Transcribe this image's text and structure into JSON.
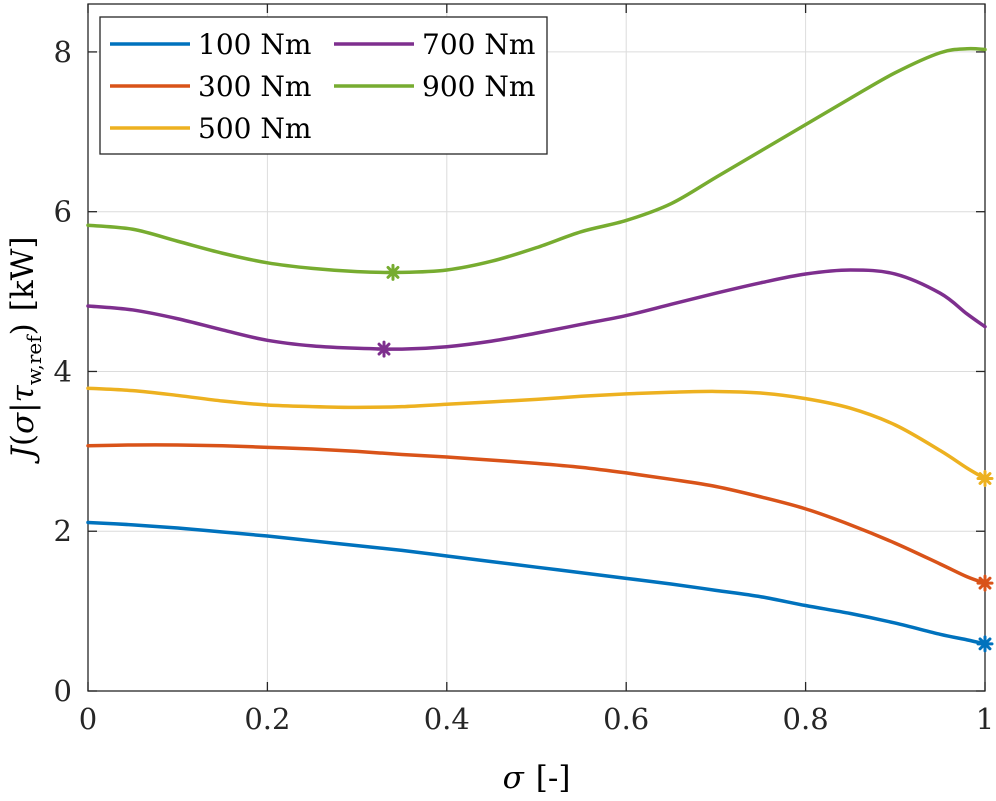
{
  "chart_data": {
    "type": "line",
    "title": "",
    "xlabel": "σ [-]",
    "ylabel": "J(σ|τ_w,ref) [kW]",
    "ylabel_parts": {
      "func": "J",
      "open": "(",
      "var": "σ",
      "bar": "|",
      "tau": "τ",
      "sub": "w,ref",
      "close": ")",
      "unit": "[kW]"
    },
    "xlabel_parts": {
      "var": "σ",
      "unit": "[-]"
    },
    "xlim": [
      0,
      1
    ],
    "ylim": [
      0,
      8.6
    ],
    "xticks": [
      0,
      0.2,
      0.4,
      0.6,
      0.8,
      1
    ],
    "xtick_labels": [
      "0",
      "0.2",
      "0.4",
      "0.6",
      "0.8",
      "1"
    ],
    "yticks": [
      0,
      2,
      4,
      6,
      8
    ],
    "ytick_labels": [
      "0",
      "2",
      "4",
      "6",
      "8"
    ],
    "grid": true,
    "legend_position": "top-left",
    "x": [
      0,
      0.05,
      0.1,
      0.15,
      0.2,
      0.25,
      0.3,
      0.35,
      0.4,
      0.45,
      0.5,
      0.55,
      0.6,
      0.65,
      0.7,
      0.75,
      0.8,
      0.85,
      0.9,
      0.95,
      0.98,
      1.0
    ],
    "series": [
      {
        "name": "100 Nm",
        "color": "#0072BD",
        "values": [
          2.11,
          2.08,
          2.04,
          1.99,
          1.94,
          1.88,
          1.82,
          1.76,
          1.69,
          1.62,
          1.55,
          1.48,
          1.41,
          1.34,
          1.26,
          1.18,
          1.07,
          0.97,
          0.85,
          0.71,
          0.64,
          0.59
        ],
        "marker": {
          "x": 1.0,
          "y": 0.59
        }
      },
      {
        "name": "300 Nm",
        "color": "#D95319",
        "values": [
          3.07,
          3.08,
          3.08,
          3.07,
          3.05,
          3.03,
          3.0,
          2.96,
          2.93,
          2.89,
          2.85,
          2.8,
          2.73,
          2.65,
          2.56,
          2.43,
          2.28,
          2.08,
          1.85,
          1.59,
          1.43,
          1.35
        ],
        "marker": {
          "x": 1.0,
          "y": 1.35
        }
      },
      {
        "name": "500 Nm",
        "color": "#EDB120",
        "values": [
          3.79,
          3.76,
          3.7,
          3.63,
          3.58,
          3.56,
          3.55,
          3.56,
          3.59,
          3.62,
          3.65,
          3.69,
          3.72,
          3.74,
          3.75,
          3.73,
          3.66,
          3.54,
          3.33,
          3.01,
          2.79,
          2.66
        ],
        "marker": {
          "x": 1.0,
          "y": 2.66
        }
      },
      {
        "name": "700 Nm",
        "color": "#7E2F8E",
        "values": [
          4.82,
          4.77,
          4.66,
          4.52,
          4.39,
          4.32,
          4.29,
          4.28,
          4.31,
          4.38,
          4.48,
          4.59,
          4.7,
          4.84,
          4.98,
          5.11,
          5.22,
          5.27,
          5.22,
          4.98,
          4.72,
          4.56
        ],
        "marker": {
          "x": 0.33,
          "y": 4.28
        }
      },
      {
        "name": "900 Nm",
        "color": "#77AC30",
        "values": [
          5.83,
          5.78,
          5.63,
          5.48,
          5.36,
          5.29,
          5.25,
          5.24,
          5.27,
          5.38,
          5.55,
          5.75,
          5.89,
          6.1,
          6.43,
          6.76,
          7.09,
          7.42,
          7.74,
          7.99,
          8.04,
          8.03
        ],
        "marker": {
          "x": 0.34,
          "y": 5.24
        }
      }
    ]
  }
}
